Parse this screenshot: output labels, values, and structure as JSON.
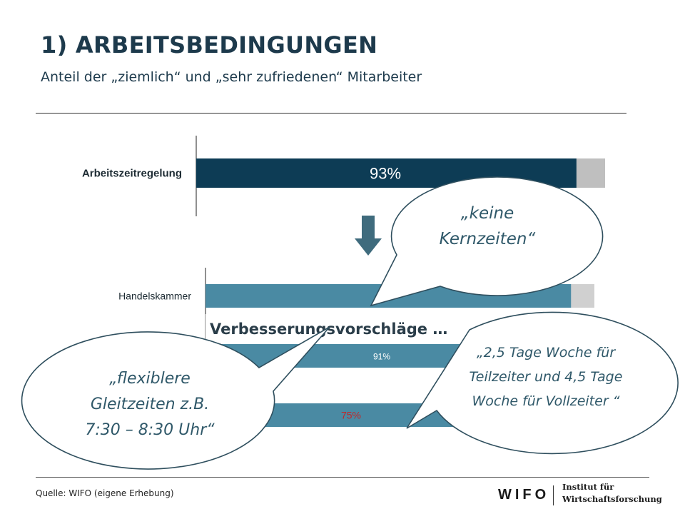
{
  "slide": {
    "title": "1) ARBEITSBEDINGUNGEN",
    "subtitle": "Anteil der „ziemlich“ und „sehr zufriedenen“ Mitarbeiter",
    "source": "Quelle: WIFO (eigene Erhebung)"
  },
  "logo": {
    "mark": "WIFO",
    "line1": "Institut für",
    "line2": "Wirtschaftsforschung"
  },
  "chart_data": [
    {
      "type": "bar",
      "orientation": "horizontal",
      "categories": [
        "Arbeitszeitregelung"
      ],
      "values": [
        93
      ],
      "data_labels": [
        "93%"
      ],
      "xlim": [
        0,
        100
      ],
      "colors": {
        "bar": "#0d3c55",
        "remainder": "#bfbfbf"
      }
    },
    {
      "type": "bar",
      "orientation": "horizontal",
      "categories": [
        "Handelskammer",
        "",
        ""
      ],
      "values": [
        94,
        91,
        75
      ],
      "data_labels": [
        "",
        "91%",
        "75%"
      ],
      "label_colors": [
        "#ffffff",
        "#ffffff",
        "#c0282a"
      ],
      "xlim": [
        0,
        100
      ],
      "colors": {
        "bar": "#4a8aa3",
        "remainder": "#d0d0d0"
      }
    }
  ],
  "overlay": {
    "heading": "Verbesserungsvorschläge …",
    "bubbles": [
      {
        "lines": [
          "„keine",
          "Kernzeiten“"
        ]
      },
      {
        "lines": [
          "„2,5 Tage Woche für",
          "Teilzeiter und 4,5 Tage",
          "Woche für Vollzeiter “"
        ]
      },
      {
        "lines": [
          "„flexiblere",
          "Gleitzeiten z.B.",
          "7:30 – 8:30 Uhr“"
        ]
      }
    ]
  },
  "colors": {
    "arrow": "#3f6b7d",
    "bubble_border": "#2f4f5e",
    "bubble_text": "#2f5869"
  }
}
